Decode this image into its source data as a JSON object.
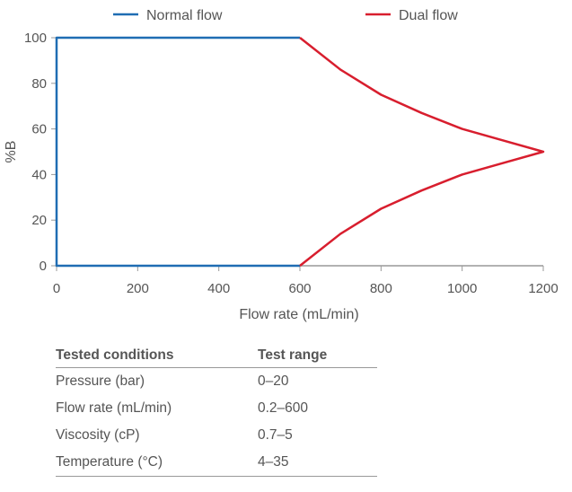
{
  "chart_data": {
    "type": "line",
    "title": "",
    "xlabel": "Flow rate (mL/min)",
    "ylabel": "%B",
    "xlim": [
      0,
      1200
    ],
    "ylim": [
      0,
      100
    ],
    "xticks": [
      0,
      200,
      400,
      600,
      800,
      1000,
      1200
    ],
    "yticks": [
      0,
      20,
      40,
      60,
      80,
      100
    ],
    "grid": false,
    "legend_position": "top",
    "series": [
      {
        "name": "Normal flow",
        "color": "#1f6db3",
        "points": [
          [
            600,
            0
          ],
          [
            0,
            0
          ],
          [
            0,
            100
          ],
          [
            600,
            100
          ]
        ]
      },
      {
        "name": "Dual flow",
        "color": "#d81e2e",
        "points": [
          [
            600,
            100
          ],
          [
            700,
            86
          ],
          [
            800,
            75
          ],
          [
            900,
            67
          ],
          [
            1000,
            60
          ],
          [
            1100,
            55
          ],
          [
            1200,
            50
          ],
          [
            1100,
            45
          ],
          [
            1000,
            40
          ],
          [
            900,
            33
          ],
          [
            800,
            25
          ],
          [
            700,
            14
          ],
          [
            600,
            0
          ]
        ]
      }
    ]
  },
  "table": {
    "headers": [
      "Tested conditions",
      "Test range"
    ],
    "rows": [
      [
        "Pressure (bar)",
        "0–20"
      ],
      [
        "Flow rate (mL/min)",
        "0.2–600"
      ],
      [
        "Viscosity (cP)",
        "0.7–5"
      ],
      [
        "Temperature (°C)",
        "4–35"
      ]
    ]
  }
}
